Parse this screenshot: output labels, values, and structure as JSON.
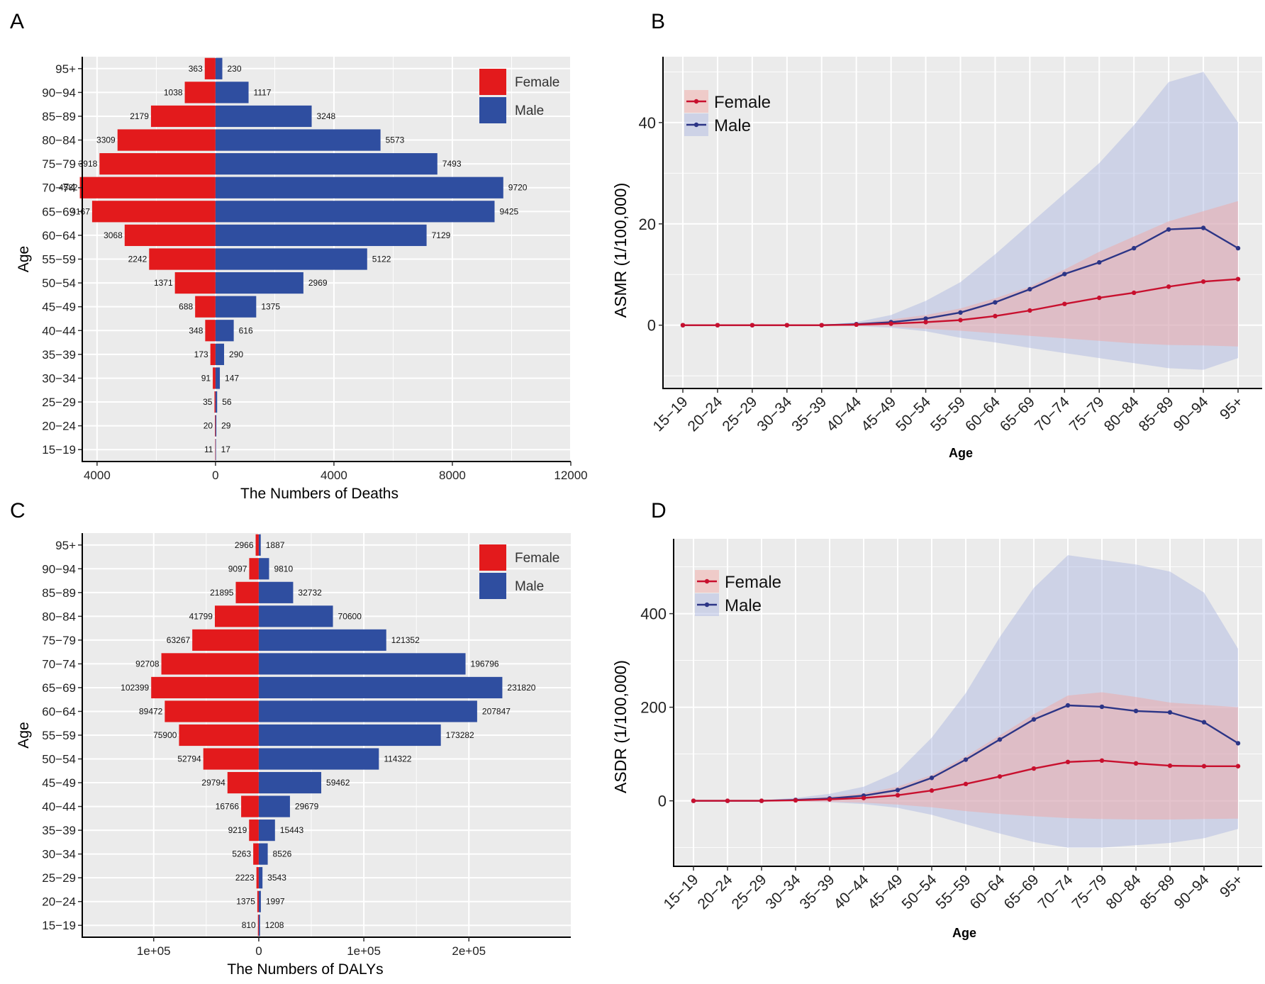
{
  "colors": {
    "female": "#e31a1c",
    "male": "#2f4ea0",
    "female_line": "#c8102e",
    "male_line": "#2c3586",
    "female_band": "#f3a3a0",
    "male_band": "#a9b3e0",
    "panel_bg": "#ebebeb",
    "grid": "#ffffff"
  },
  "chart_data": [
    {
      "panel": "A",
      "type": "bar",
      "orientation": "horizontal-butterfly",
      "ylabel": "Age",
      "xlabel": "The Numbers of Deaths",
      "categories": [
        "15-19",
        "20-24",
        "25-29",
        "30-34",
        "35-39",
        "40-44",
        "45-49",
        "50-54",
        "55-59",
        "60-64",
        "65-69",
        "70-74",
        "75-79",
        "80-84",
        "85-89",
        "90-94",
        "95+"
      ],
      "category_labels": [
        "15−19",
        "20−24",
        "25−29",
        "30−34",
        "35−39",
        "40−44",
        "45−49",
        "50−54",
        "55−59",
        "60−64",
        "65−69",
        "70−74",
        "75−79",
        "80−84",
        "85−89",
        "90−94",
        "95+"
      ],
      "series": [
        {
          "name": "Female",
          "values": [
            11,
            20,
            35,
            91,
            173,
            348,
            688,
            1371,
            2242,
            3068,
            4167,
            4582,
            3918,
            3309,
            2179,
            1038,
            363
          ]
        },
        {
          "name": "Male",
          "values": [
            17,
            29,
            56,
            147,
            290,
            616,
            1375,
            2969,
            5122,
            7129,
            9425,
            9720,
            7493,
            5573,
            3248,
            1117,
            230
          ]
        }
      ],
      "xlim": [
        -4500,
        12000
      ],
      "xticks": [
        -4000,
        0,
        4000,
        8000,
        12000
      ],
      "xtick_labels": [
        "4000",
        "0",
        "4000",
        "8000",
        "12000"
      ],
      "legend": [
        "Female",
        "Male"
      ]
    },
    {
      "panel": "B",
      "type": "line",
      "ylabel": "ASMR (1/100,000)",
      "xlabel": "Age",
      "x": [
        "15-19",
        "20-24",
        "25-29",
        "30-34",
        "35-39",
        "40-44",
        "45-49",
        "50-54",
        "55-59",
        "60-64",
        "65-69",
        "70-74",
        "75-79",
        "80-84",
        "85-89",
        "90-94",
        "95+"
      ],
      "x_labels": [
        "15−19",
        "20−24",
        "25−29",
        "30−34",
        "35−39",
        "40−44",
        "45−49",
        "50−54",
        "55−59",
        "60−64",
        "65−69",
        "70−74",
        "75−79",
        "80−84",
        "85−89",
        "90−94",
        "95+"
      ],
      "series": [
        {
          "name": "Female",
          "values": [
            0,
            0,
            0,
            0,
            0,
            0.1,
            0.3,
            0.6,
            1.0,
            1.8,
            2.9,
            4.2,
            5.4,
            6.4,
            7.6,
            8.6,
            9.1
          ],
          "lower": [
            0,
            0,
            0,
            0,
            0,
            -0.1,
            -0.3,
            -0.7,
            -1.1,
            -1.6,
            -2.1,
            -2.6,
            -3.1,
            -3.6,
            -3.9,
            -4.0,
            -4.2
          ],
          "upper": [
            0,
            0,
            0,
            0,
            0,
            0.4,
            1.1,
            2.0,
            3.3,
            5.3,
            7.6,
            11.0,
            14.5,
            17.5,
            20.5,
            22.5,
            24.5
          ]
        },
        {
          "name": "Male",
          "values": [
            0,
            0,
            0,
            0,
            0,
            0.2,
            0.6,
            1.3,
            2.5,
            4.5,
            7.1,
            10.1,
            12.4,
            15.2,
            18.9,
            19.2,
            15.2
          ],
          "lower": [
            0,
            0,
            0,
            0,
            0,
            -0.2,
            -0.5,
            -1.2,
            -2.5,
            -3.4,
            -4.5,
            -5.5,
            -6.5,
            -7.5,
            -8.5,
            -8.8,
            -6.5
          ],
          "upper": [
            0,
            0,
            0,
            0,
            0,
            0.6,
            2.0,
            4.8,
            8.5,
            14.0,
            20.0,
            26.0,
            32.0,
            39.5,
            48.0,
            50.0,
            40.0
          ]
        }
      ],
      "ylim": [
        -12.5,
        53
      ],
      "yticks": [
        0,
        20,
        40
      ],
      "legend": [
        "Female",
        "Male"
      ]
    },
    {
      "panel": "C",
      "type": "bar",
      "orientation": "horizontal-butterfly",
      "ylabel": "Age",
      "xlabel": "The Numbers of DALYs",
      "categories": [
        "15-19",
        "20-24",
        "25-29",
        "30-34",
        "35-39",
        "40-44",
        "45-49",
        "50-54",
        "55-59",
        "60-64",
        "65-69",
        "70-74",
        "75-79",
        "80-84",
        "85-89",
        "90-94",
        "95+"
      ],
      "category_labels": [
        "15−19",
        "20−24",
        "25−29",
        "30−34",
        "35−39",
        "40−44",
        "45−49",
        "50−54",
        "55−59",
        "60−64",
        "65−69",
        "70−74",
        "75−79",
        "80−84",
        "85−89",
        "90−94",
        "95+"
      ],
      "series": [
        {
          "name": "Female",
          "values": [
            810,
            1375,
            2223,
            5263,
            9219,
            16766,
            29794,
            52794,
            75900,
            89472,
            102399,
            92708,
            63267,
            41799,
            21895,
            9097,
            2966
          ]
        },
        {
          "name": "Male",
          "values": [
            1208,
            1997,
            3543,
            8526,
            15443,
            29679,
            59462,
            114322,
            173282,
            207847,
            231820,
            196796,
            121352,
            70600,
            32732,
            9810,
            1887
          ]
        }
      ],
      "xlim": [
        -168000,
        297000
      ],
      "xticks": [
        -100000,
        0,
        100000,
        200000
      ],
      "xtick_labels": [
        "1e+05",
        "0",
        "1e+05",
        "2e+05"
      ],
      "legend": [
        "Female",
        "Male"
      ]
    },
    {
      "panel": "D",
      "type": "line",
      "ylabel": "ASDR (1/100,000)",
      "xlabel": "Age",
      "x": [
        "15-19",
        "20-24",
        "25-29",
        "30-34",
        "35-39",
        "40-44",
        "45-49",
        "50-54",
        "55-59",
        "60-64",
        "65-69",
        "70-74",
        "75-79",
        "80-84",
        "85-89",
        "90-94",
        "95+"
      ],
      "x_labels": [
        "15−19",
        "20−24",
        "25−29",
        "30−34",
        "35−39",
        "40−44",
        "45−49",
        "50−54",
        "55−59",
        "60−64",
        "65−69",
        "70−74",
        "75−79",
        "80−84",
        "85−89",
        "90−94",
        "95+"
      ],
      "series": [
        {
          "name": "Female",
          "values": [
            0,
            0,
            0,
            1,
            3,
            6,
            12,
            22,
            36,
            52,
            69,
            83,
            86,
            80,
            75,
            74,
            74
          ],
          "lower": [
            0,
            0,
            0,
            -1,
            -2,
            -4,
            -8,
            -14,
            -22,
            -28,
            -33,
            -37,
            -39,
            -40,
            -40,
            -39,
            -38
          ],
          "upper": [
            0,
            0,
            1,
            4,
            9,
            16,
            30,
            55,
            95,
            140,
            185,
            225,
            232,
            222,
            210,
            205,
            200
          ]
        },
        {
          "name": "Male",
          "values": [
            0,
            0,
            0,
            2,
            5,
            11,
            23,
            49,
            88,
            131,
            174,
            204,
            201,
            192,
            189,
            168,
            123
          ],
          "lower": [
            0,
            0,
            0,
            -1,
            -3,
            -7,
            -15,
            -30,
            -50,
            -70,
            -88,
            -100,
            -100,
            -95,
            -90,
            -80,
            -60
          ],
          "upper": [
            0,
            0,
            1,
            6,
            15,
            30,
            62,
            135,
            230,
            350,
            455,
            525,
            515,
            505,
            490,
            445,
            325
          ]
        }
      ],
      "ylim": [
        -140,
        560
      ],
      "yticks": [
        0,
        200,
        400
      ],
      "legend": [
        "Female",
        "Male"
      ]
    }
  ]
}
